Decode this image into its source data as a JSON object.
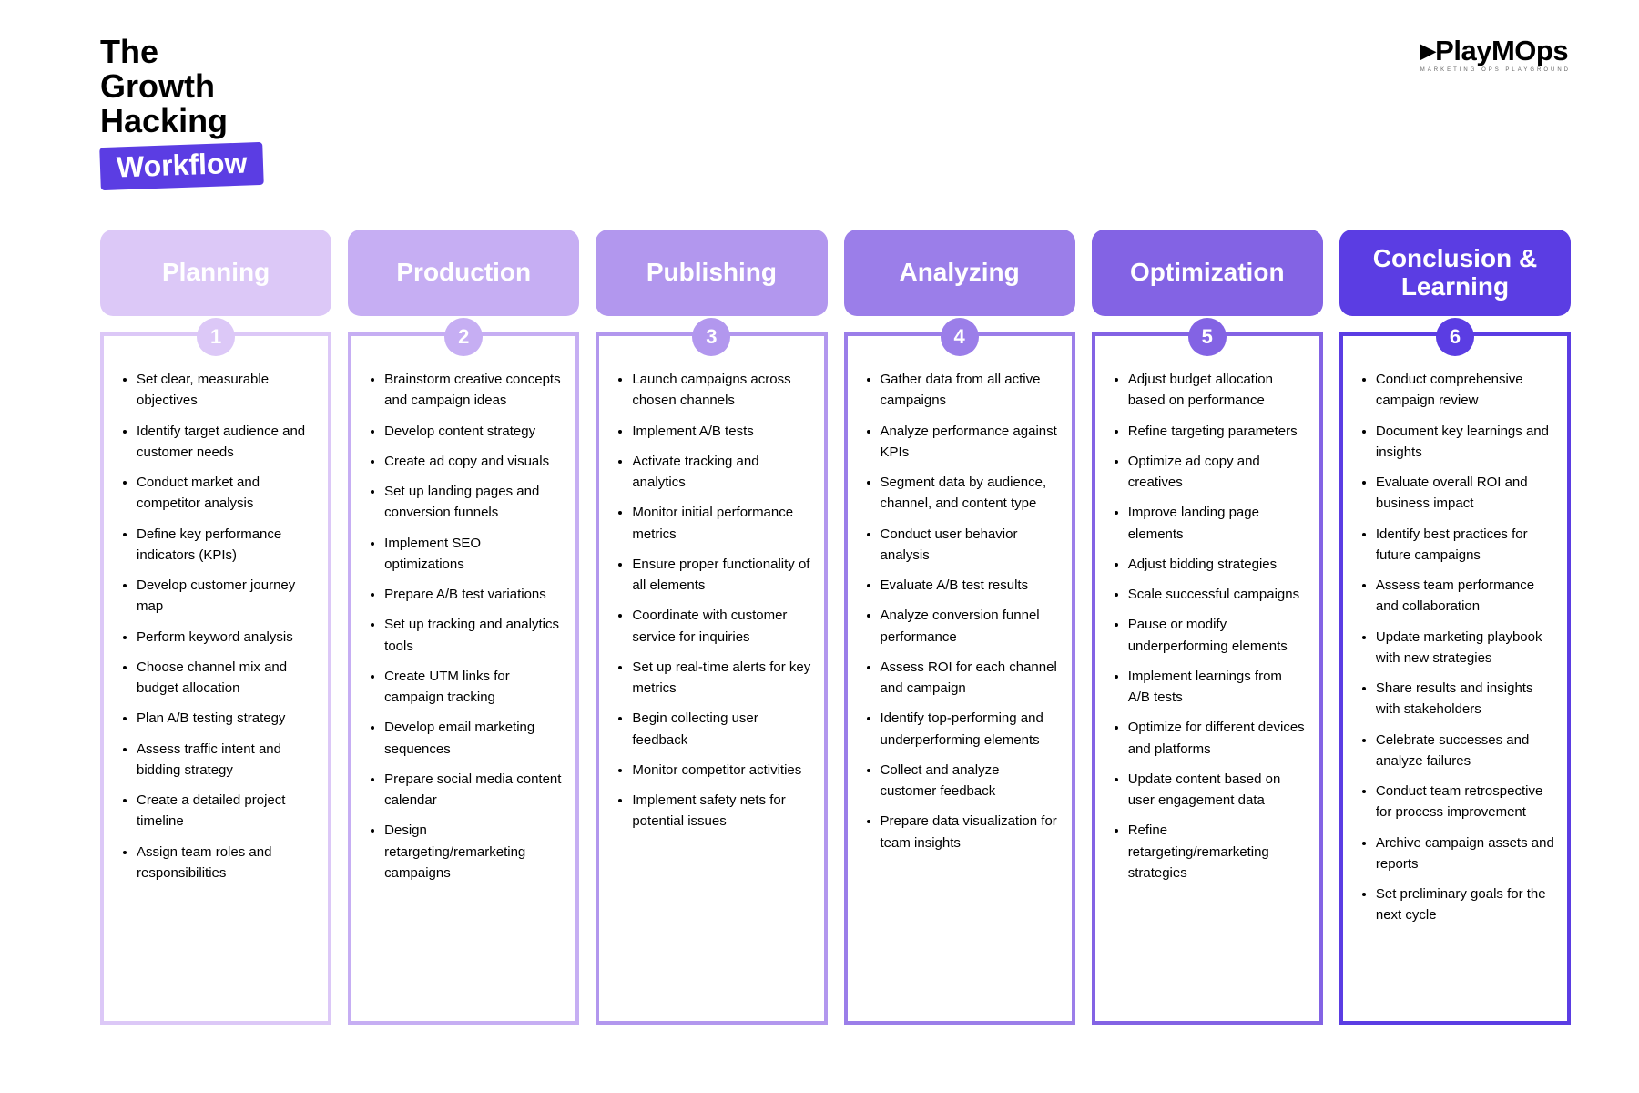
{
  "logo": {
    "text": "PlayMOps",
    "subtitle": "MARKETING OPS PLAYGROUND"
  },
  "title": {
    "line1": "The",
    "line2": "Growth",
    "line3": "Hacking",
    "badge": "Workflow"
  },
  "palette": [
    {
      "tab": "#dcc8f7",
      "circle": "#dcc8f7",
      "border": "#dcc8f7"
    },
    {
      "tab": "#c6aef3",
      "circle": "#c6aef3",
      "border": "#c6aef3"
    },
    {
      "tab": "#b297ee",
      "circle": "#b297ee",
      "border": "#b297ee"
    },
    {
      "tab": "#9b7ee9",
      "circle": "#9b7ee9",
      "border": "#9b7ee9"
    },
    {
      "tab": "#8363e4",
      "circle": "#8363e4",
      "border": "#8363e4"
    },
    {
      "tab": "#5b3de3",
      "circle": "#5b3de3",
      "border": "#5b3de3"
    }
  ],
  "columns": [
    {
      "number": "1",
      "title": "Planning",
      "items": [
        "Set clear, measurable objectives",
        "Identify target audience and customer needs",
        "Conduct market and competitor analysis",
        "Define key performance indicators (KPIs)",
        "Develop customer journey map",
        "Perform keyword analysis",
        "Choose channel mix and budget allocation",
        "Plan A/B testing strategy",
        "Assess traffic intent and bidding strategy",
        "Create a detailed project timeline",
        "Assign team roles and responsibilities"
      ]
    },
    {
      "number": "2",
      "title": "Production",
      "items": [
        "Brainstorm creative concepts and campaign ideas",
        "Develop content strategy",
        "Create ad copy and visuals",
        "Set up landing pages and conversion funnels",
        "Implement SEO optimizations",
        "Prepare A/B test variations",
        "Set up tracking and analytics tools",
        "Create UTM links for campaign tracking",
        "Develop email marketing sequences",
        "Prepare social media content calendar",
        "Design retargeting/remarketing campaigns"
      ]
    },
    {
      "number": "3",
      "title": "Publishing",
      "items": [
        "Launch campaigns across chosen channels",
        "Implement A/B tests",
        "Activate tracking and analytics",
        "Monitor initial performance metrics",
        "Ensure proper functionality of all elements",
        "Coordinate with customer service for inquiries",
        "Set up real-time alerts for key metrics",
        "Begin collecting user feedback",
        "Monitor competitor activities",
        "Implement safety nets for potential issues"
      ]
    },
    {
      "number": "4",
      "title": "Analyzing",
      "items": [
        "Gather data from all active campaigns",
        "Analyze performance against KPIs",
        "Segment data by audience, channel, and content type",
        "Conduct user behavior analysis",
        "Evaluate A/B test results",
        "Analyze conversion funnel performance",
        "Assess ROI for each channel and campaign",
        "Identify top-performing and underperforming elements",
        "Collect and analyze customer feedback",
        "Prepare data visualization for team insights"
      ]
    },
    {
      "number": "5",
      "title": "Optimization",
      "items": [
        "Adjust budget allocation based on performance",
        "Refine targeting parameters",
        "Optimize ad copy and creatives",
        "Improve landing page elements",
        "Adjust bidding strategies",
        "Scale successful campaigns",
        "Pause or modify underperforming elements",
        "Implement learnings from A/B tests",
        "Optimize for different devices and platforms",
        "Update content based on user engagement data",
        "Refine retargeting/remarketing strategies"
      ]
    },
    {
      "number": "6",
      "title": "Conclusion & Learning",
      "items": [
        "Conduct comprehensive campaign review",
        "Document key learnings and insights",
        "Evaluate overall ROI and business impact",
        "Identify best practices for future campaigns",
        "Assess team performance and collaboration",
        "Update marketing playbook with new strategies",
        "Share results and insights with stakeholders",
        "Celebrate successes and analyze failures",
        "Conduct team retrospective for process improvement",
        "Archive campaign assets and reports",
        "Set preliminary goals for the next cycle"
      ]
    }
  ]
}
